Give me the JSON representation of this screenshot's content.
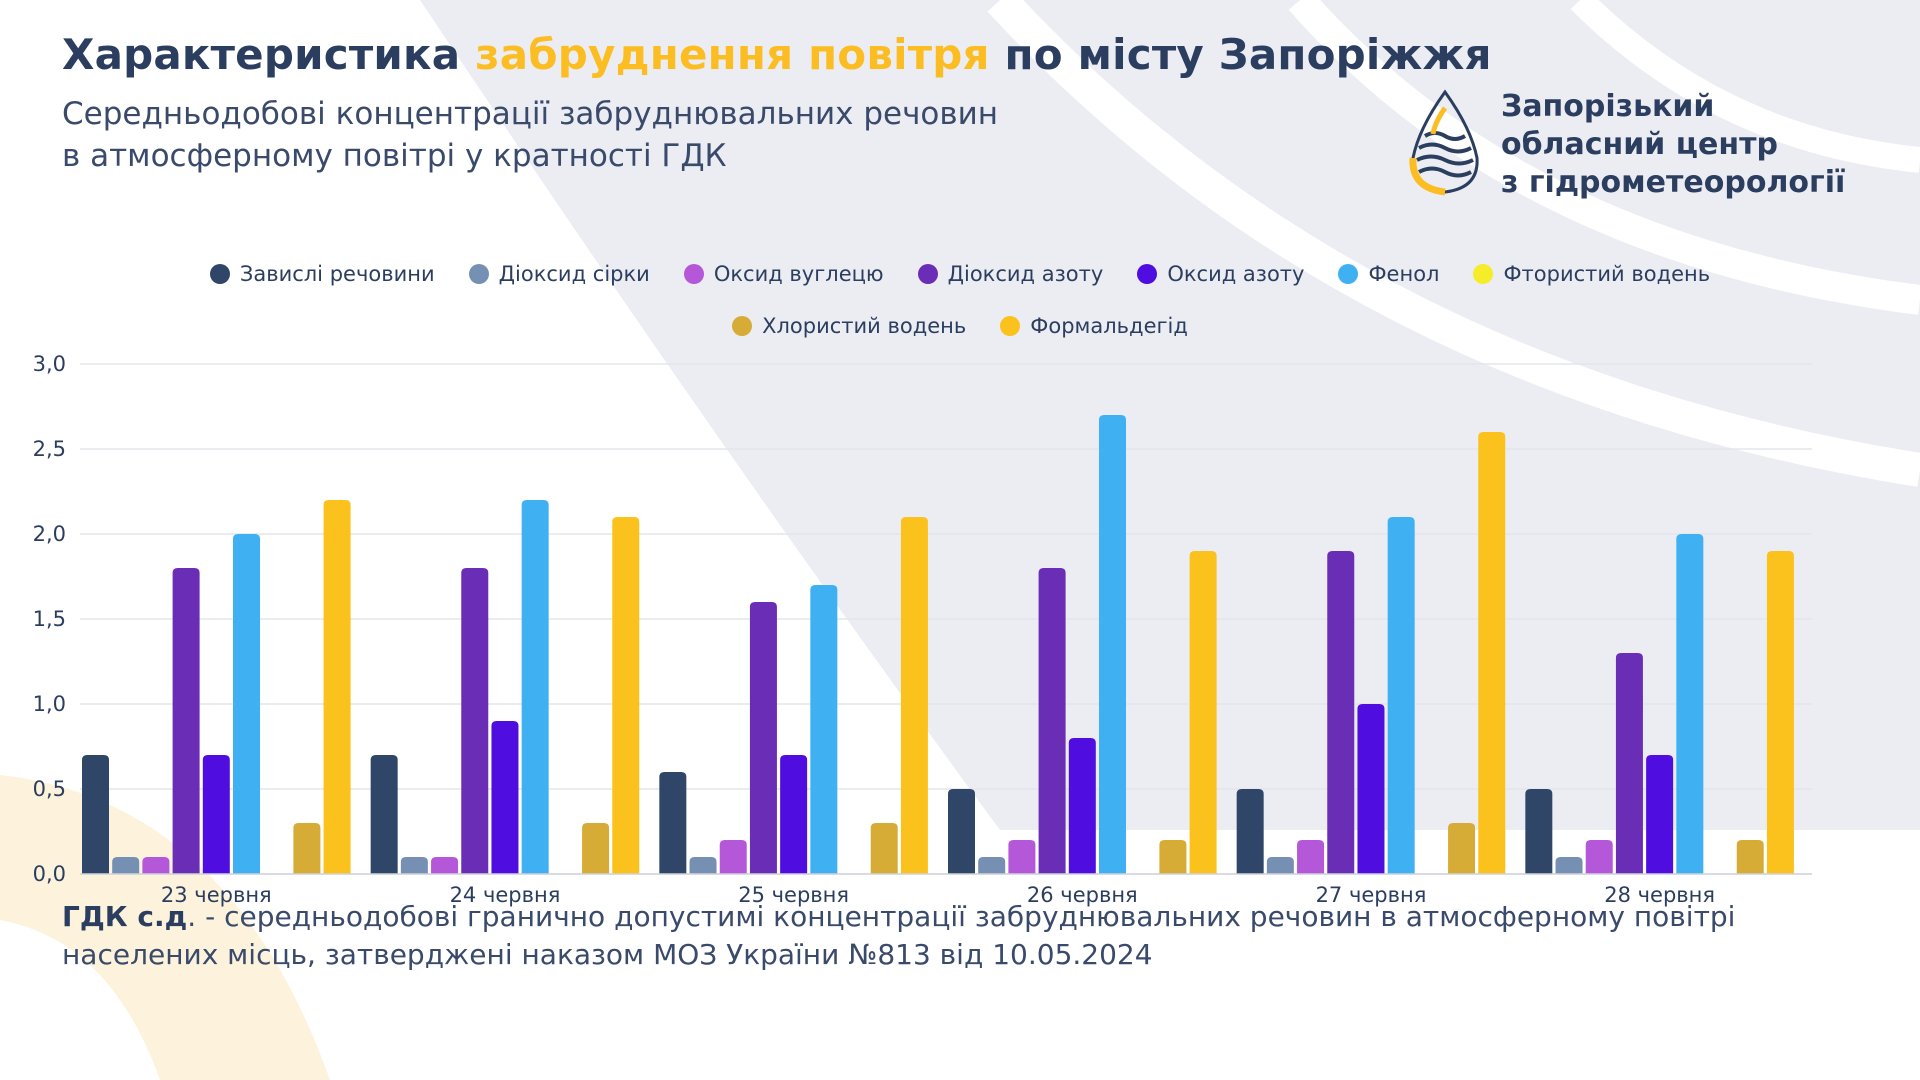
{
  "header": {
    "title_part1": "Характеристика ",
    "title_highlight": "забруднення повітря",
    "title_part2": " по місту Запоріжжя",
    "subtitle_line1": "Середньодобові концентрації забруднювальних речовин",
    "subtitle_line2": "в атмосферному повітрі у кратності ГДК"
  },
  "logo": {
    "line1": "Запорізький",
    "line2": "обласний центр",
    "line3": "з гідрометеорології"
  },
  "colors": {
    "title": "#2c3e5f",
    "accent": "#fbbd21",
    "grid": "#e3e5ea"
  },
  "chart_data": {
    "type": "bar",
    "categories": [
      "23 червня",
      "24 червня",
      "25 червня",
      "26 червня",
      "27 червня",
      "28 червня"
    ],
    "ylim": [
      0,
      3
    ],
    "yticks": [
      "0,0",
      "0,5",
      "1,0",
      "1,5",
      "2,0",
      "2,5",
      "3,0"
    ],
    "yticks_values": [
      0,
      0.5,
      1,
      1.5,
      2,
      2.5,
      3
    ],
    "grid": true,
    "legend_position": "top",
    "series": [
      {
        "name": "Завислі речовини",
        "color": "#2f4669",
        "values": [
          0.7,
          0.7,
          0.6,
          0.5,
          0.5,
          0.5
        ]
      },
      {
        "name": "Діоксид сірки",
        "color": "#7590b3",
        "values": [
          0.1,
          0.1,
          0.1,
          0.1,
          0.1,
          0.1
        ]
      },
      {
        "name": "Оксид вуглецю",
        "color": "#b457d9",
        "values": [
          0.1,
          0.1,
          0.2,
          0.2,
          0.2,
          0.2
        ]
      },
      {
        "name": "Діоксид азоту",
        "color": "#6a2db5",
        "values": [
          1.8,
          1.8,
          1.6,
          1.8,
          1.9,
          1.3
        ]
      },
      {
        "name": "Оксид азоту",
        "color": "#4f0de0",
        "values": [
          0.7,
          0.9,
          0.7,
          0.8,
          1.0,
          0.7
        ]
      },
      {
        "name": "Фенол",
        "color": "#3fb0f2",
        "values": [
          2.0,
          2.2,
          1.7,
          2.7,
          2.1,
          2.0
        ]
      },
      {
        "name": "Фтористий водень",
        "color": "#f5ec2a",
        "values": [
          0,
          0,
          0,
          0,
          0,
          0
        ]
      },
      {
        "name": "Хлористий водень",
        "color": "#d6ac36",
        "values": [
          0.3,
          0.3,
          0.3,
          0.2,
          0.3,
          0.2
        ]
      },
      {
        "name": "Формальдегід",
        "color": "#fbc11c",
        "values": [
          2.2,
          2.1,
          2.1,
          1.9,
          2.6,
          1.9
        ]
      }
    ]
  },
  "footnote": {
    "term": "ГДК с.д",
    "text": ". - середньодобові гранично допустимі концентрації забруднювальних речовин в атмосферному повітрі населених місць, затверджені наказом МОЗ України №813 від 10.05.2024"
  }
}
